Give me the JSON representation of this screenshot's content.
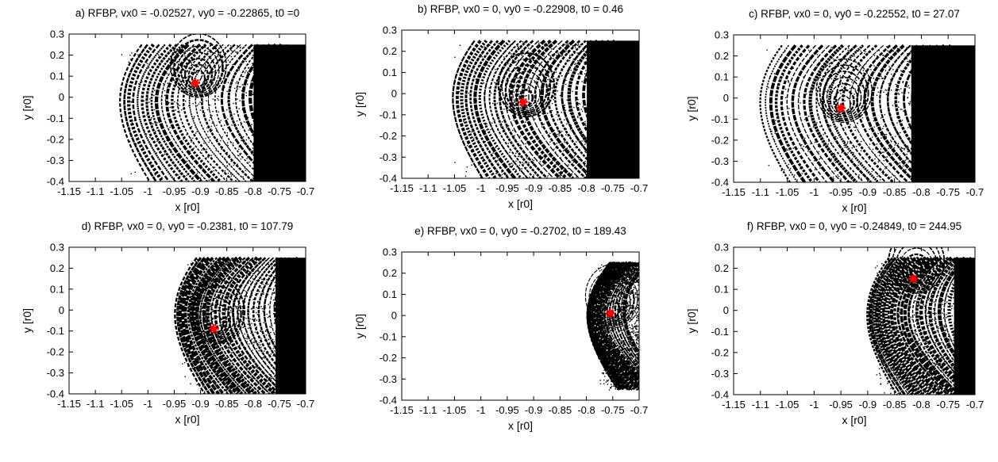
{
  "chart_data": [
    {
      "type": "scatter",
      "title": "a) RFBP, vx0 = -0.02527, vy0 = -0.22865, t0 =0",
      "xlabel": "x [r0]",
      "ylabel": "y [r0]",
      "xlim": [
        -1.15,
        -0.7
      ],
      "ylim": [
        -0.4,
        0.3
      ],
      "xticks": [
        "-1.15",
        "-1.1",
        "-1.05",
        "-1",
        "-0.95",
        "-0.9",
        "-0.85",
        "-0.8",
        "-0.75",
        "-0.7"
      ],
      "yticks": [
        "-0.4",
        "-0.3",
        "-0.2",
        "-0.1",
        "0",
        "0.1",
        "0.2",
        "0.3"
      ],
      "marker": {
        "x": -0.91,
        "y": 0.068,
        "color": "#ff0000"
      },
      "basin_extent": {
        "x_min": -1.06,
        "x_max": -0.7,
        "y_min": -0.4,
        "y_max": 0.25
      }
    },
    {
      "type": "scatter",
      "title": "b) RFBP, vx0 = 0, vy0 = -0.22908, t0 = 0.46",
      "xlabel": "x [r0]",
      "ylabel": "y [r0]",
      "xlim": [
        -1.15,
        -0.7
      ],
      "ylim": [
        -0.4,
        0.3
      ],
      "xticks": [
        "-1.15",
        "-1.1",
        "-1.05",
        "-1",
        "-0.95",
        "-0.9",
        "-0.85",
        "-0.8",
        "-0.75",
        "-0.7"
      ],
      "yticks": [
        "-0.4",
        "-0.3",
        "-0.2",
        "-0.1",
        "0",
        "0.1",
        "0.2",
        "0.3"
      ],
      "marker": {
        "x": -0.92,
        "y": -0.04,
        "color": "#ff0000"
      },
      "basin_extent": {
        "x_min": -1.06,
        "x_max": -0.7,
        "y_min": -0.4,
        "y_max": 0.25
      }
    },
    {
      "type": "scatter",
      "title": "c) RFBP, vx0 = 0, vy0 = -0.22552, t0 = 27.07",
      "xlabel": "x [r0]",
      "ylabel": "y [r0]",
      "xlim": [
        -1.15,
        -0.7
      ],
      "ylim": [
        -0.4,
        0.3
      ],
      "xticks": [
        "-1.15",
        "-1.1",
        "-1.05",
        "-1",
        "-0.95",
        "-0.9",
        "-0.85",
        "-0.8",
        "-0.75",
        "-0.7"
      ],
      "yticks": [
        "-0.4",
        "-0.3",
        "-0.2",
        "-0.1",
        "0",
        "0.1",
        "0.2",
        "0.3"
      ],
      "marker": {
        "x": -0.95,
        "y": -0.048,
        "color": "#ff0000"
      },
      "basin_extent": {
        "x_min": -1.11,
        "x_max": -0.7,
        "y_min": -0.4,
        "y_max": 0.25
      }
    },
    {
      "type": "scatter",
      "title": "d) RFBP, vx0 = 0, vy0 = -0.2381, t0 = 107.79",
      "xlabel": "x [r0]",
      "ylabel": "y [r0]",
      "xlim": [
        -1.15,
        -0.7
      ],
      "ylim": [
        -0.4,
        0.3
      ],
      "xticks": [
        "-1.15",
        "-1.1",
        "-1.05",
        "-1",
        "-0.95",
        "-0.9",
        "-0.85",
        "-0.8",
        "-0.75",
        "-0.7"
      ],
      "yticks": [
        "-0.4",
        "-0.3",
        "-0.2",
        "-0.1",
        "0",
        "0.1",
        "0.2",
        "0.3"
      ],
      "marker": {
        "x": -0.875,
        "y": -0.09,
        "color": "#ff0000"
      },
      "basin_extent": {
        "x_min": -0.95,
        "x_max": -0.7,
        "y_min": -0.4,
        "y_max": 0.25
      }
    },
    {
      "type": "scatter",
      "title": "e) RFBP, vx0 = 0, vy0 = -0.2702, t0 = 189.43",
      "xlabel": "x [r0]",
      "ylabel": "y [r0]",
      "xlim": [
        -1.15,
        -0.7
      ],
      "ylim": [
        -0.4,
        0.3
      ],
      "xticks": [
        "-1.15",
        "-1.1",
        "-1.05",
        "-1",
        "-0.95",
        "-0.9",
        "-0.85",
        "-0.8",
        "-0.75",
        "-0.7"
      ],
      "yticks": [
        "-0.4",
        "-0.3",
        "-0.2",
        "-0.1",
        "0",
        "0.1",
        "0.2",
        "0.3"
      ],
      "marker": {
        "x": -0.755,
        "y": 0.01,
        "color": "#ff0000"
      },
      "basin_extent": {
        "x_min": -0.79,
        "x_max": -0.7,
        "y_min": -0.35,
        "y_max": 0.25
      }
    },
    {
      "type": "scatter",
      "title": "f) RFBP, vx0 = 0, vy0 = -0.24849, t0 = 244.95",
      "xlabel": "x [r0]",
      "ylabel": "y [r0]",
      "xlim": [
        -1.15,
        -0.7
      ],
      "ylim": [
        -0.4,
        0.3
      ],
      "xticks": [
        "-1.15",
        "-1.1",
        "-1.05",
        "-1",
        "-0.95",
        "-0.9",
        "-0.85",
        "-0.8",
        "-0.75",
        "-0.7"
      ],
      "yticks": [
        "-0.4",
        "-0.3",
        "-0.2",
        "-0.1",
        "0",
        "0.1",
        "0.2",
        "0.3"
      ],
      "marker": {
        "x": -0.815,
        "y": 0.15,
        "color": "#ff0000"
      },
      "basin_extent": {
        "x_min": -0.9,
        "x_max": -0.7,
        "y_min": -0.4,
        "y_max": 0.25
      }
    }
  ]
}
